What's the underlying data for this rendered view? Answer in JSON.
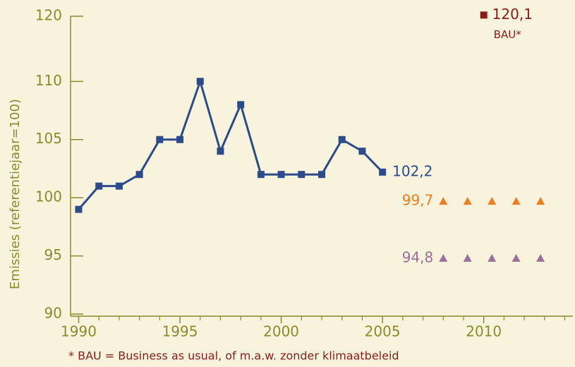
{
  "chart_data": {
    "type": "line",
    "ylabel": "Emissies (referentiejaar=100)",
    "footnote": "* BAU = Business as usual, of m.a.w. zonder klimaatbeleid",
    "xlim": [
      1989.6,
      2014.4
    ],
    "xticks": [
      1990,
      1995,
      2000,
      2005,
      2010
    ],
    "xminorticks": [
      1991,
      1992,
      1993,
      1994,
      1996,
      1997,
      1998,
      1999,
      2001,
      2002,
      2003,
      2004,
      2006,
      2007,
      2008,
      2009,
      2011,
      2012,
      2013,
      2014
    ],
    "ylim": [
      90,
      120
    ],
    "y_break": [
      111,
      115.4
    ],
    "yticks": [
      90,
      95,
      100,
      105,
      110,
      120
    ],
    "axis_color": "#8c8a2c",
    "series": [
      {
        "color": "#2d4a8a",
        "marker": "square",
        "line": true,
        "x": [
          1990,
          1991,
          1992,
          1993,
          1994,
          1995,
          1996,
          1997,
          1998,
          1999,
          2000,
          2001,
          2002,
          2003,
          2004,
          2005
        ],
        "values": [
          99,
          101,
          101,
          102,
          105,
          105,
          110,
          104,
          108,
          102,
          102,
          102,
          102,
          105,
          104,
          102.2
        ],
        "value_labels": [
          null,
          null,
          null,
          null,
          null,
          null,
          null,
          null,
          null,
          null,
          null,
          null,
          null,
          null,
          null,
          "102,2"
        ]
      },
      {
        "color": "#ee7d22",
        "marker": "triangle",
        "line": false,
        "x": [
          2008,
          2009.2,
          2010.4,
          2011.6,
          2012.8
        ],
        "values": [
          99.7,
          99.7,
          99.7,
          99.7,
          99.7
        ],
        "value_labels": [
          "99,7",
          null,
          null,
          null,
          null
        ]
      },
      {
        "color": "#9b7199",
        "marker": "triangle",
        "line": false,
        "x": [
          2008,
          2009.2,
          2010.4,
          2011.6,
          2012.8
        ],
        "values": [
          94.8,
          94.8,
          94.8,
          94.8,
          94.8
        ],
        "value_labels": [
          "94,8",
          null,
          null,
          null,
          null
        ]
      },
      {
        "name": "BAU*",
        "color": "#8b1c1c",
        "marker": "square",
        "line": false,
        "x": [
          2010
        ],
        "values": [
          120.1
        ],
        "value_labels": [
          "120,1"
        ]
      }
    ]
  }
}
